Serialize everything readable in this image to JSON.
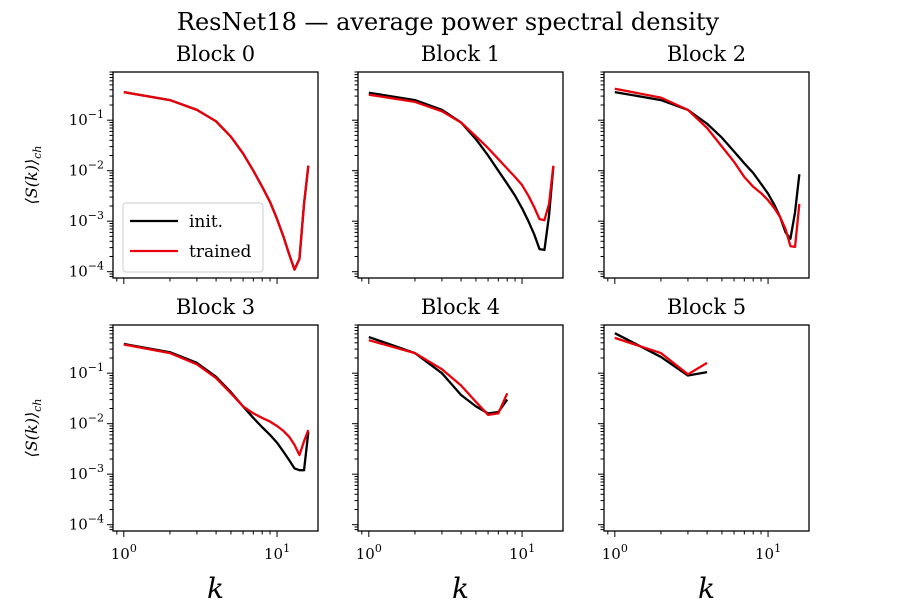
{
  "figure_title": "ResNet18 — average power spectral density",
  "ylabel": "⟨S(k)⟩",
  "ylabel_sub": "ch",
  "xlabel": "k",
  "colors": {
    "init": "#000000",
    "trained": "#e8000b"
  },
  "legend": {
    "init": "init.",
    "trained": "trained"
  },
  "x_tick_labels": [
    {
      "value": 1,
      "base": "10",
      "exp": "0"
    },
    {
      "value": 10,
      "base": "10",
      "exp": "1"
    }
  ],
  "y_tick_labels": [
    {
      "value": 0.1,
      "base": "10",
      "exp": "−1"
    },
    {
      "value": 0.01,
      "base": "10",
      "exp": "−2"
    },
    {
      "value": 0.001,
      "base": "10",
      "exp": "−3"
    },
    {
      "value": 0.0001,
      "base": "10",
      "exp": "−4"
    }
  ],
  "chart_data": [
    {
      "type": "line",
      "title": "Block 0",
      "xscale": "log",
      "yscale": "log",
      "xlim": [
        0.85,
        18.5
      ],
      "ylim": [
        7.5e-05,
        0.9
      ],
      "series": [
        {
          "name": "init.",
          "x": [
            1,
            2,
            3,
            4,
            5,
            6,
            7,
            8,
            9,
            10,
            11,
            12,
            13,
            14,
            15,
            16
          ],
          "y": [
            0.36,
            0.25,
            0.16,
            0.095,
            0.047,
            0.022,
            0.01,
            0.0048,
            0.0024,
            0.0011,
            0.0005,
            0.00022,
            0.00011,
            0.00018,
            0.0022,
            0.0125
          ]
        },
        {
          "name": "trained",
          "x": [
            1,
            2,
            3,
            4,
            5,
            6,
            7,
            8,
            9,
            10,
            11,
            12,
            13,
            14,
            15,
            16
          ],
          "y": [
            0.36,
            0.25,
            0.16,
            0.095,
            0.047,
            0.022,
            0.01,
            0.0048,
            0.0024,
            0.0011,
            0.0005,
            0.00022,
            0.00011,
            0.00018,
            0.0022,
            0.0125
          ]
        }
      ]
    },
    {
      "type": "line",
      "title": "Block 1",
      "xscale": "log",
      "yscale": "log",
      "xlim": [
        0.85,
        18.5
      ],
      "ylim": [
        7.5e-05,
        0.9
      ],
      "series": [
        {
          "name": "init.",
          "x": [
            1,
            2,
            3,
            4,
            5,
            6,
            7,
            8,
            9,
            10,
            11,
            12,
            13,
            14,
            15,
            16
          ],
          "y": [
            0.35,
            0.25,
            0.16,
            0.09,
            0.042,
            0.02,
            0.01,
            0.0055,
            0.0032,
            0.0018,
            0.001,
            0.00055,
            0.00028,
            0.00027,
            0.0013,
            0.012
          ]
        },
        {
          "name": "trained",
          "x": [
            1,
            2,
            3,
            4,
            5,
            6,
            7,
            8,
            9,
            10,
            11,
            12,
            13,
            14,
            15,
            16
          ],
          "y": [
            0.32,
            0.23,
            0.15,
            0.09,
            0.048,
            0.028,
            0.017,
            0.011,
            0.0075,
            0.0052,
            0.0032,
            0.0019,
            0.0011,
            0.00105,
            0.0022,
            0.0125
          ]
        }
      ]
    },
    {
      "type": "line",
      "title": "Block 2",
      "xscale": "log",
      "yscale": "log",
      "xlim": [
        0.85,
        18.5
      ],
      "ylim": [
        7.5e-05,
        0.9
      ],
      "series": [
        {
          "name": "init.",
          "x": [
            1,
            2,
            3,
            4,
            5,
            6,
            7,
            8,
            9,
            10,
            11,
            12,
            13,
            14,
            15,
            16
          ],
          "y": [
            0.36,
            0.25,
            0.16,
            0.085,
            0.045,
            0.024,
            0.014,
            0.009,
            0.0055,
            0.0035,
            0.0021,
            0.0012,
            0.0006,
            0.00045,
            0.0015,
            0.0085
          ]
        },
        {
          "name": "trained",
          "x": [
            1,
            2,
            3,
            4,
            5,
            6,
            7,
            8,
            9,
            10,
            11,
            12,
            13,
            14,
            15,
            16
          ],
          "y": [
            0.42,
            0.28,
            0.16,
            0.07,
            0.03,
            0.015,
            0.0075,
            0.0048,
            0.0036,
            0.0026,
            0.0018,
            0.0012,
            0.0007,
            0.00032,
            0.00031,
            0.0022
          ]
        }
      ]
    },
    {
      "type": "line",
      "title": "Block 3",
      "xscale": "log",
      "yscale": "log",
      "xlim": [
        0.85,
        18.5
      ],
      "ylim": [
        7.5e-05,
        0.9
      ],
      "series": [
        {
          "name": "init.",
          "x": [
            1,
            2,
            3,
            4,
            5,
            6,
            7,
            8,
            9,
            10,
            11,
            12,
            13,
            14,
            15,
            16
          ],
          "y": [
            0.38,
            0.26,
            0.16,
            0.085,
            0.042,
            0.022,
            0.013,
            0.0085,
            0.006,
            0.0042,
            0.0028,
            0.0019,
            0.0013,
            0.0012,
            0.0012,
            0.0068
          ]
        },
        {
          "name": "trained",
          "x": [
            1,
            2,
            3,
            4,
            5,
            6,
            7,
            8,
            9,
            10,
            11,
            12,
            13,
            14,
            15,
            16
          ],
          "y": [
            0.37,
            0.25,
            0.15,
            0.08,
            0.04,
            0.022,
            0.016,
            0.013,
            0.011,
            0.009,
            0.0072,
            0.0055,
            0.0038,
            0.0024,
            0.0045,
            0.0075
          ]
        }
      ]
    },
    {
      "type": "line",
      "title": "Block 4",
      "xscale": "log",
      "yscale": "log",
      "xlim": [
        0.85,
        18.5
      ],
      "ylim": [
        7.5e-05,
        0.9
      ],
      "series": [
        {
          "name": "init.",
          "x": [
            1,
            2,
            3,
            4,
            5,
            6,
            7,
            8
          ],
          "y": [
            0.52,
            0.25,
            0.1,
            0.037,
            0.022,
            0.016,
            0.017,
            0.03
          ]
        },
        {
          "name": "trained",
          "x": [
            1,
            2,
            3,
            4,
            5,
            6,
            7,
            8
          ],
          "y": [
            0.45,
            0.25,
            0.12,
            0.057,
            0.027,
            0.015,
            0.016,
            0.04
          ]
        }
      ]
    },
    {
      "type": "line",
      "title": "Block 5",
      "xscale": "log",
      "yscale": "log",
      "xlim": [
        0.85,
        18.5
      ],
      "ylim": [
        7.5e-05,
        0.9
      ],
      "series": [
        {
          "name": "init.",
          "x": [
            1,
            2,
            3,
            4
          ],
          "y": [
            0.62,
            0.21,
            0.09,
            0.105
          ]
        },
        {
          "name": "trained",
          "x": [
            1,
            2,
            3,
            4
          ],
          "y": [
            0.5,
            0.25,
            0.095,
            0.16
          ]
        }
      ]
    }
  ]
}
